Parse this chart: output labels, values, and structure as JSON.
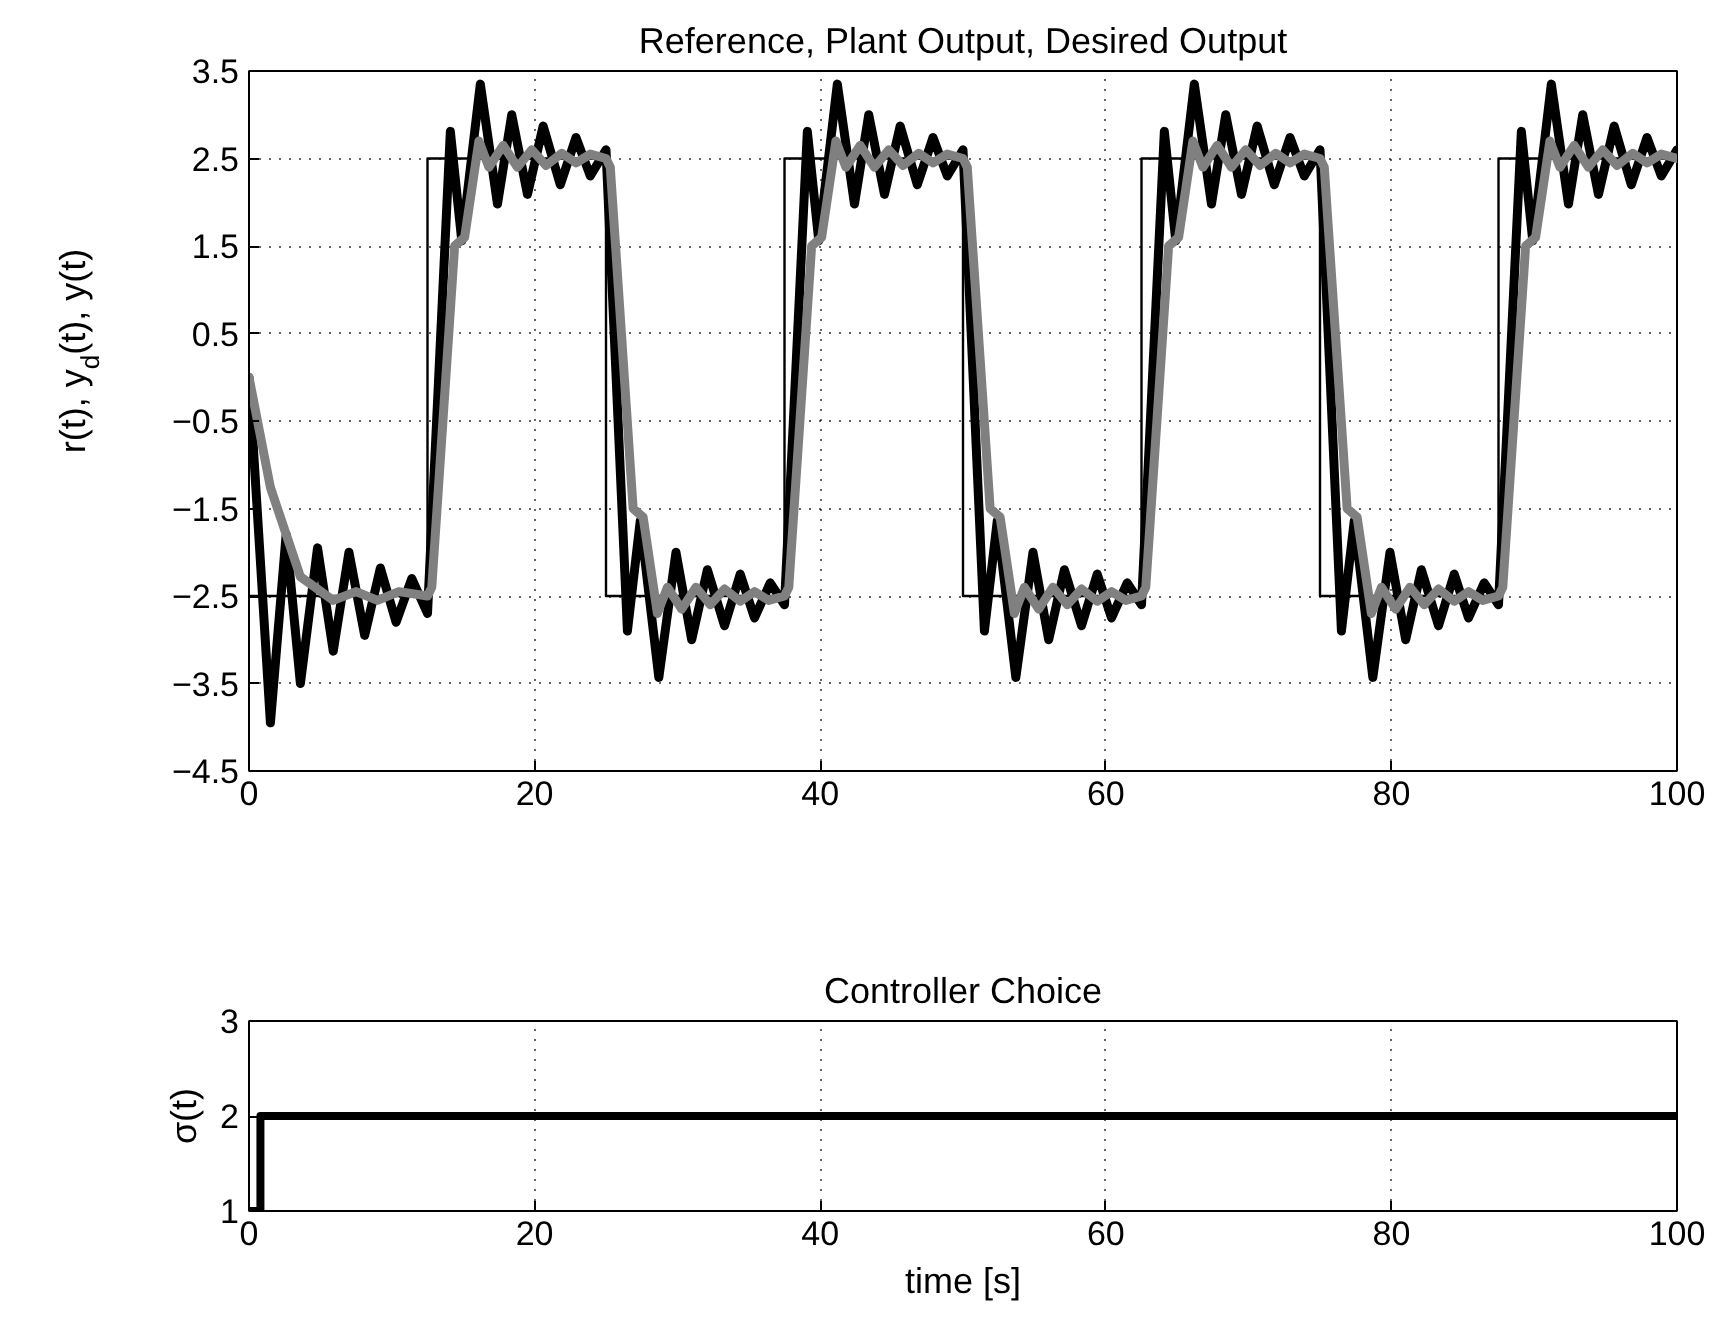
{
  "chart_data": [
    {
      "type": "line",
      "title": "Reference, Plant Output, Desired Output",
      "ylabel": "r(t), y$_{d}$(t), y(t)",
      "xlim": [
        0,
        100
      ],
      "xticks": [
        0,
        20,
        40,
        60,
        80,
        100
      ],
      "ylim": [
        -4.5,
        3.5
      ],
      "yticks": [
        {
          "value": -4.5,
          "label": "−4.5"
        },
        {
          "value": -3.5,
          "label": "−3.5"
        },
        {
          "value": -2.5,
          "label": "−2.5"
        },
        {
          "value": -1.5,
          "label": "−1.5"
        },
        {
          "value": -0.5,
          "label": "−0.5"
        },
        0.5,
        1.5,
        2.5,
        3.5
      ],
      "grid": true,
      "series": [
        {
          "type": "step",
          "color": "#000000",
          "x": [
            0,
            12.5,
            25,
            37.5,
            50,
            62.5,
            75,
            87.5,
            100
          ],
          "values": [
            -2.5,
            2.5,
            -2.5,
            2.5,
            -2.5,
            2.5,
            -2.5,
            2.5,
            2.5
          ]
        },
        {
          "type": "line",
          "color": "#000000",
          "x": [
            0,
            1.5,
            2.6,
            3.6,
            4.8,
            5.9,
            7.0,
            8.1,
            9.2,
            10.3,
            11.4,
            12.5,
            14.1,
            14.9,
            16.2,
            17.4,
            18.4,
            19.5,
            20.6,
            21.8,
            22.9,
            23.9,
            25.0,
            26.5,
            27.4,
            28.7,
            29.9,
            31.0,
            32.1,
            33.3,
            34.4,
            35.4,
            36.5,
            37.5,
            39.1,
            39.9,
            41.2,
            42.4,
            43.4,
            44.5,
            45.6,
            46.8,
            47.9,
            48.9,
            50.0,
            51.5,
            52.4,
            53.7,
            54.9,
            56.0,
            57.1,
            58.3,
            59.4,
            60.4,
            61.5,
            62.5,
            64.1,
            64.9,
            66.2,
            67.4,
            68.4,
            69.5,
            70.6,
            71.8,
            72.9,
            73.9,
            75.0,
            76.5,
            77.4,
            78.7,
            79.9,
            81.0,
            82.1,
            83.3,
            84.4,
            85.4,
            86.5,
            87.5,
            89.1,
            89.9,
            91.2,
            92.4,
            93.4,
            94.5,
            95.6,
            96.8,
            97.9,
            98.9,
            100.0
          ],
          "values": [
            0,
            -3.95,
            -1.8,
            -3.5,
            -1.95,
            -3.13,
            -2.0,
            -2.95,
            -2.18,
            -2.8,
            -2.3,
            -2.7,
            2.81,
            1.56,
            3.35,
            1.98,
            3.0,
            2.09,
            2.87,
            2.2,
            2.74,
            2.3,
            2.6,
            -2.9,
            -1.64,
            -3.43,
            -2.0,
            -3.0,
            -2.2,
            -2.84,
            -2.25,
            -2.75,
            -2.35,
            -2.6,
            2.81,
            1.56,
            3.35,
            1.98,
            3.0,
            2.09,
            2.87,
            2.2,
            2.74,
            2.3,
            2.6,
            -2.9,
            -1.64,
            -3.43,
            -2.0,
            -3.0,
            -2.2,
            -2.84,
            -2.25,
            -2.75,
            -2.35,
            -2.6,
            2.81,
            1.56,
            3.35,
            1.98,
            3.0,
            2.09,
            2.87,
            2.2,
            2.74,
            2.3,
            2.6,
            -2.9,
            -1.64,
            -3.43,
            -2.0,
            -3.0,
            -2.2,
            -2.84,
            -2.25,
            -2.75,
            -2.35,
            -2.6,
            2.81,
            1.56,
            3.35,
            1.98,
            3.0,
            2.09,
            2.87,
            2.2,
            2.74,
            2.3,
            2.6
          ]
        },
        {
          "type": "line",
          "color": "#808080",
          "x": [
            0,
            1.5,
            3.6,
            5.9,
            7.5,
            9.0,
            10.5,
            12.5,
            12.8,
            14.4,
            15.1,
            16.1,
            16.8,
            17.8,
            18.8,
            19.8,
            20.8,
            21.9,
            22.9,
            23.9,
            25.0,
            25.3,
            26.9,
            27.6,
            28.6,
            29.3,
            30.3,
            31.3,
            32.3,
            33.3,
            34.4,
            35.4,
            36.4,
            37.5,
            37.8,
            39.4,
            40.1,
            41.1,
            41.8,
            42.8,
            43.8,
            44.8,
            45.8,
            46.9,
            47.9,
            48.9,
            50.0,
            50.3,
            51.9,
            52.6,
            53.6,
            54.3,
            55.3,
            56.3,
            57.3,
            58.3,
            59.4,
            60.4,
            61.4,
            62.5,
            62.8,
            64.4,
            65.1,
            66.1,
            66.8,
            67.8,
            68.8,
            69.8,
            70.8,
            71.9,
            72.9,
            73.9,
            75.0,
            75.3,
            76.9,
            77.6,
            78.6,
            79.3,
            80.3,
            81.3,
            82.3,
            83.3,
            84.4,
            85.4,
            86.4,
            87.5,
            87.8,
            89.4,
            90.1,
            91.1,
            91.8,
            92.8,
            93.8,
            94.8,
            95.8,
            96.9,
            97.9,
            98.9,
            100.0
          ],
          "values": [
            0,
            -1.26,
            -2.28,
            -2.55,
            -2.45,
            -2.55,
            -2.45,
            -2.5,
            -2.4,
            1.5,
            1.6,
            2.7,
            2.4,
            2.65,
            2.4,
            2.6,
            2.42,
            2.56,
            2.45,
            2.55,
            2.5,
            2.4,
            -1.5,
            -1.6,
            -2.7,
            -2.4,
            -2.65,
            -2.4,
            -2.6,
            -2.42,
            -2.56,
            -2.45,
            -2.55,
            -2.5,
            -2.4,
            1.5,
            1.6,
            2.7,
            2.4,
            2.65,
            2.4,
            2.6,
            2.42,
            2.56,
            2.45,
            2.55,
            2.5,
            2.4,
            -1.5,
            -1.6,
            -2.7,
            -2.4,
            -2.65,
            -2.4,
            -2.6,
            -2.42,
            -2.56,
            -2.45,
            -2.55,
            -2.5,
            -2.4,
            1.5,
            1.6,
            2.7,
            2.4,
            2.65,
            2.4,
            2.6,
            2.42,
            2.56,
            2.45,
            2.55,
            2.5,
            2.4,
            -1.5,
            -1.6,
            -2.7,
            -2.4,
            -2.65,
            -2.4,
            -2.6,
            -2.42,
            -2.56,
            -2.45,
            -2.55,
            -2.5,
            -2.4,
            1.5,
            1.6,
            2.7,
            2.4,
            2.65,
            2.4,
            2.6,
            2.42,
            2.56,
            2.45,
            2.55,
            2.5
          ]
        }
      ]
    },
    {
      "type": "step",
      "title": "Controller Choice",
      "xlabel": "time [s]",
      "ylabel": "σ(t)",
      "xlim": [
        0,
        100
      ],
      "xticks": [
        0,
        20,
        40,
        60,
        80,
        100
      ],
      "ylim": [
        1,
        3
      ],
      "yticks": [
        1,
        2,
        3
      ],
      "grid": true,
      "series": [
        {
          "color": "#000000",
          "x": [
            0,
            0.8,
            100
          ],
          "values": [
            1,
            2,
            2
          ]
        }
      ]
    }
  ]
}
